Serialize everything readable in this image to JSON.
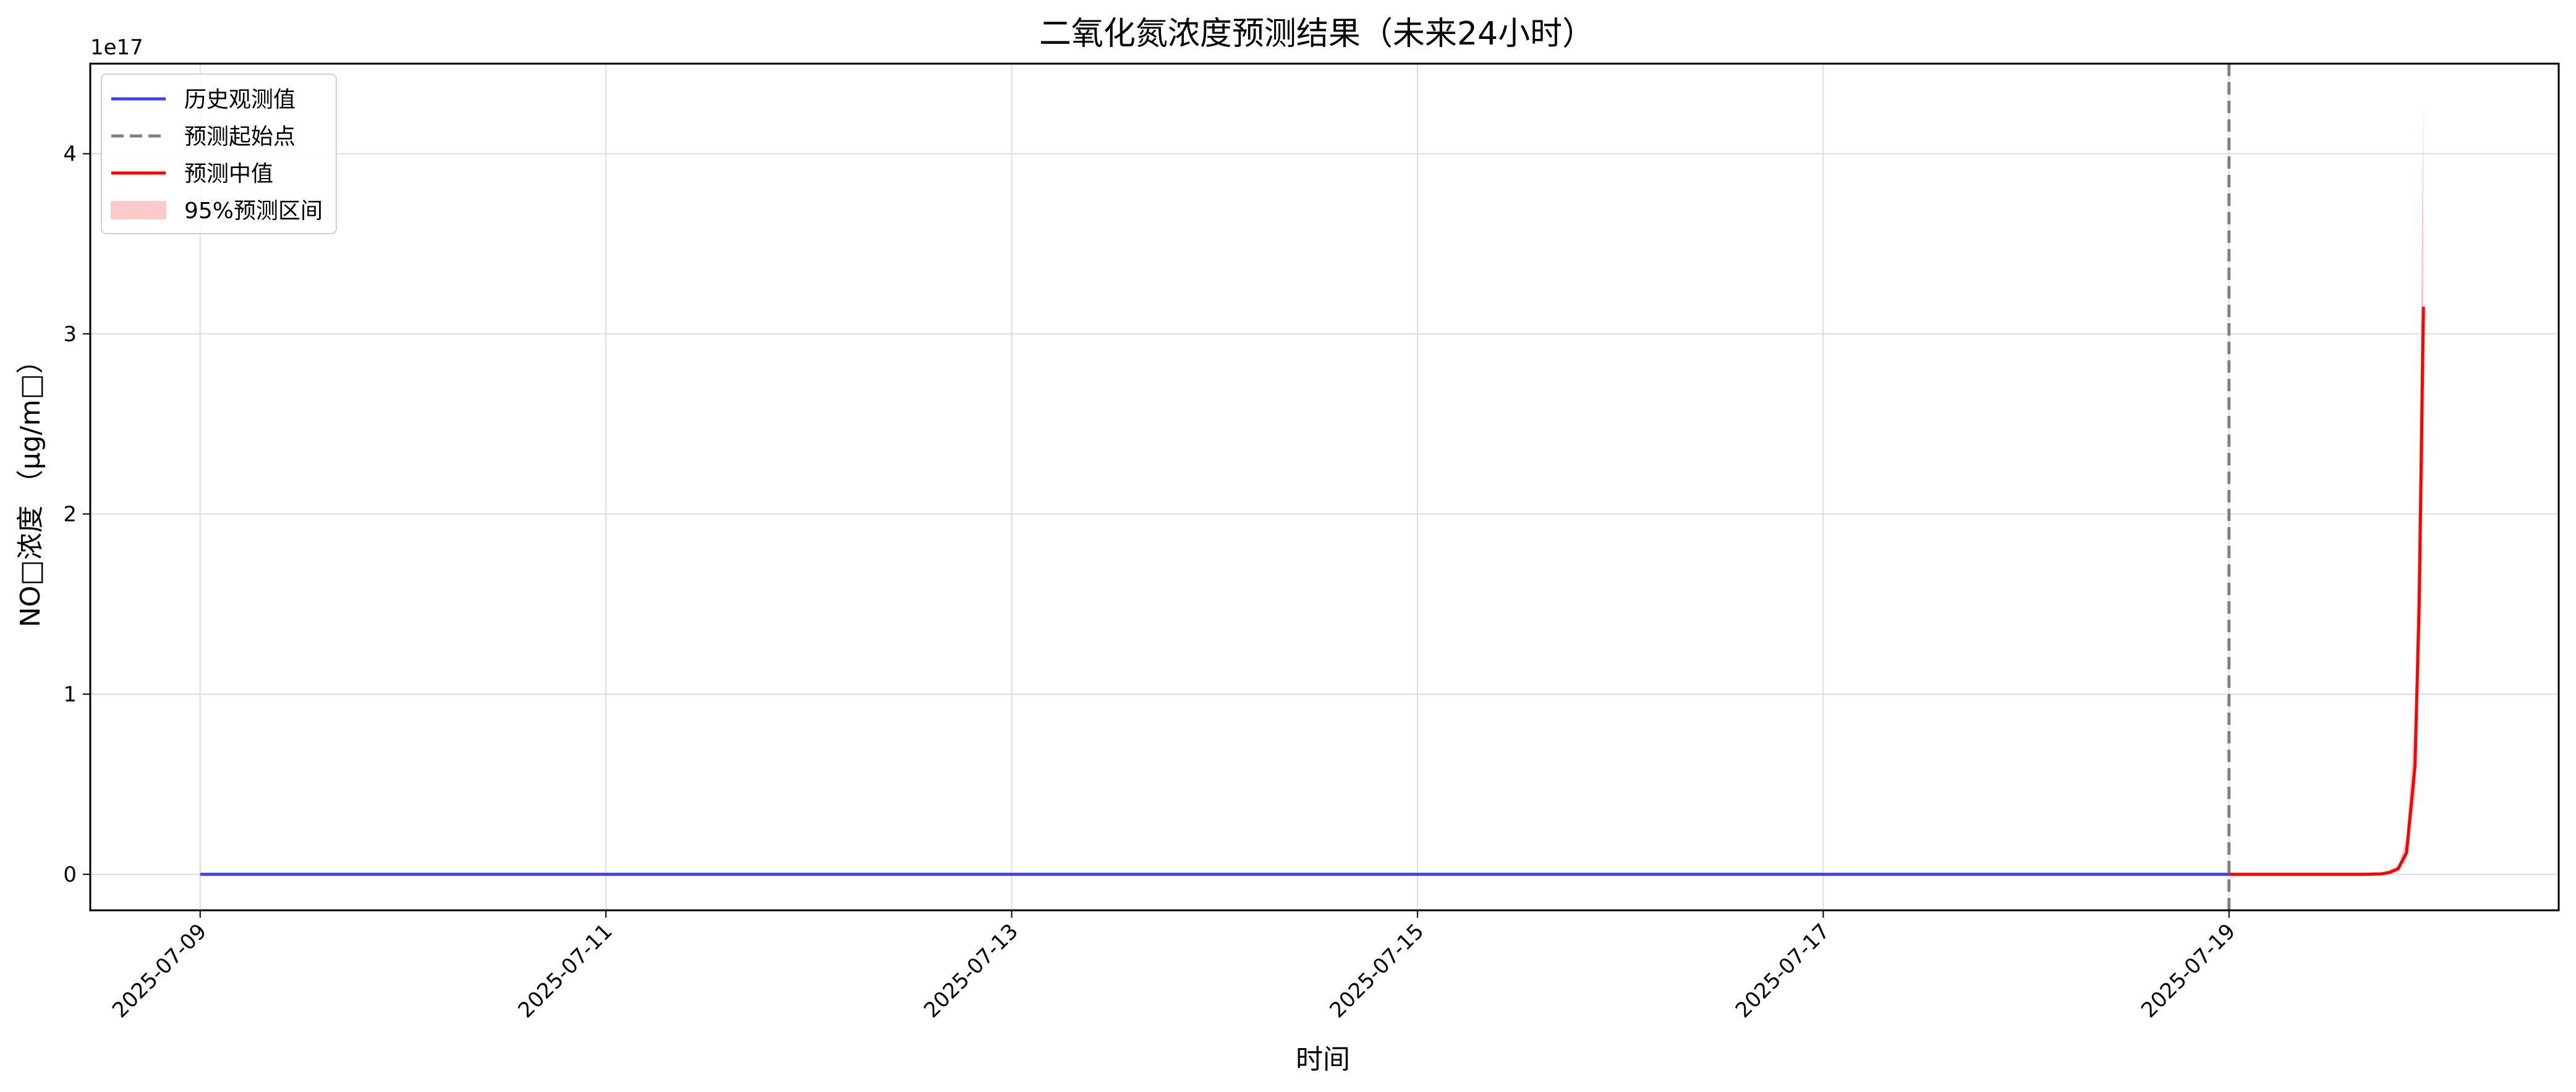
{
  "chart_data": {
    "type": "line",
    "title": "二氧化氮浓度预测结果（未来24小时）",
    "xlabel": "时间",
    "ylabel": "NO□浓度 （μg/m□）",
    "y_offset_label": "1e17",
    "y_multiplier": 1e+17,
    "x_ticks": [
      "2025-07-09",
      "2025-07-11",
      "2025-07-13",
      "2025-07-15",
      "2025-07-17",
      "2025-07-19"
    ],
    "y_ticks": [
      "0",
      "1",
      "2",
      "3",
      "4"
    ],
    "xlim": [
      "2025-07-08 11:00",
      "2025-07-20 15:00"
    ],
    "ylim": [
      -0.2,
      4.5
    ],
    "grid": true,
    "legend_position": "top-left",
    "forecast_start": "2025-07-19 00:00",
    "legend": [
      {
        "label": "历史观测值",
        "kind": "line",
        "color": "#4040ee"
      },
      {
        "label": "预测起始点",
        "kind": "dashed",
        "color": "#808080"
      },
      {
        "label": "预测中值",
        "kind": "line",
        "color": "#ff0000"
      },
      {
        "label": "95%预测区间",
        "kind": "band",
        "color": "#ffb3b3"
      }
    ],
    "series": [
      {
        "name": "历史观测值",
        "color": "#4040ee",
        "x": [
          "2025-07-09 00:00",
          "2025-07-19 00:00"
        ],
        "values": [
          0,
          0
        ]
      },
      {
        "name": "预测中值",
        "color": "#ff0000",
        "x": [
          "2025-07-19 00:00",
          "2025-07-19 04:00",
          "2025-07-19 08:00",
          "2025-07-19 12:00",
          "2025-07-19 16:00",
          "2025-07-19 18:00",
          "2025-07-19 19:00",
          "2025-07-19 20:00",
          "2025-07-19 21:00",
          "2025-07-19 22:00",
          "2025-07-19 22:30",
          "2025-07-19 23:00"
        ],
        "values": [
          0,
          0,
          0,
          0,
          0,
          0.002,
          0.01,
          0.03,
          0.12,
          0.6,
          1.5,
          3.15
        ]
      },
      {
        "name": "95%预测区间",
        "color": "#ffb3b3",
        "x": [
          "2025-07-19 00:00",
          "2025-07-19 12:00",
          "2025-07-19 18:00",
          "2025-07-19 20:00",
          "2025-07-19 21:00",
          "2025-07-19 22:00",
          "2025-07-19 22:30",
          "2025-07-19 23:00"
        ],
        "lower": [
          0,
          0,
          0.001,
          0.02,
          0.09,
          0.45,
          1.2,
          2.4
        ],
        "upper": [
          0,
          0,
          0.004,
          0.05,
          0.2,
          0.9,
          2.3,
          4.3
        ]
      }
    ]
  }
}
